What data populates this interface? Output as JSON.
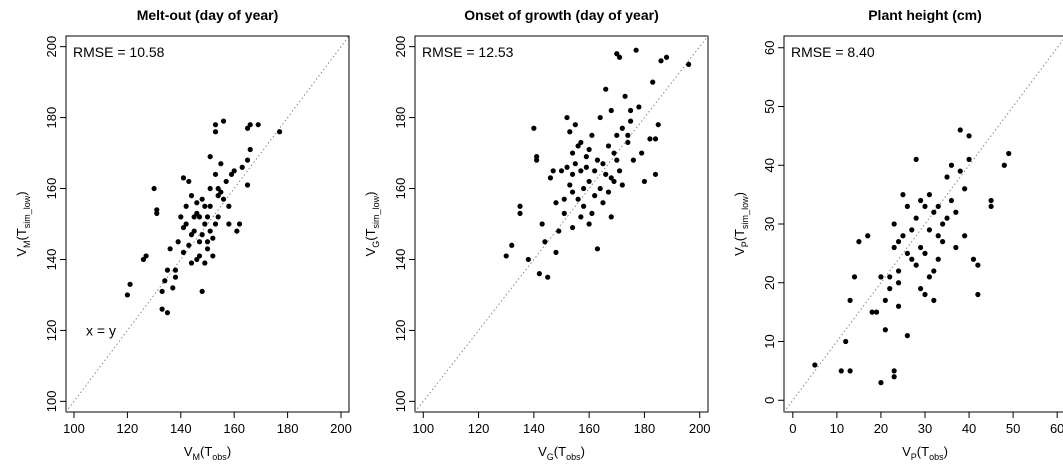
{
  "chart_data": [
    {
      "type": "scatter",
      "title": "Melt-out (day of year)",
      "xlabel": {
        "main": "V",
        "sub_main": "M",
        "paren_main": "T",
        "paren_sub": "obs"
      },
      "ylabel": {
        "main": "V",
        "sub_main": "M",
        "paren_main": "T",
        "paren_sub": "sim_low"
      },
      "xlim": [
        97,
        203
      ],
      "ylim": [
        97,
        203
      ],
      "xticks": [
        "100",
        "120",
        "140",
        "160",
        "180",
        "200"
      ],
      "yticks": [
        "100",
        "120",
        "140",
        "160",
        "180",
        "200"
      ],
      "annotation": "RMSE = 10.58",
      "line_label": "x = y",
      "identity_line": true,
      "points": [
        [
          120,
          130
        ],
        [
          121,
          133
        ],
        [
          126,
          140
        ],
        [
          127,
          141
        ],
        [
          130,
          160
        ],
        [
          131,
          153
        ],
        [
          131,
          154
        ],
        [
          133,
          131
        ],
        [
          133,
          126
        ],
        [
          134,
          134
        ],
        [
          135,
          137
        ],
        [
          135,
          125
        ],
        [
          136,
          143
        ],
        [
          137,
          132
        ],
        [
          138,
          137
        ],
        [
          138,
          135
        ],
        [
          139,
          145
        ],
        [
          140,
          152
        ],
        [
          141,
          163
        ],
        [
          141,
          149
        ],
        [
          141,
          142
        ],
        [
          142,
          155
        ],
        [
          142,
          150
        ],
        [
          143,
          144
        ],
        [
          143,
          162
        ],
        [
          144,
          147
        ],
        [
          144,
          139
        ],
        [
          144,
          158
        ],
        [
          145,
          152
        ],
        [
          145,
          148
        ],
        [
          146,
          140
        ],
        [
          146,
          153
        ],
        [
          146,
          156
        ],
        [
          147,
          145
        ],
        [
          147,
          141
        ],
        [
          147,
          152
        ],
        [
          148,
          157
        ],
        [
          148,
          147
        ],
        [
          148,
          131
        ],
        [
          149,
          150
        ],
        [
          149,
          139
        ],
        [
          149,
          155
        ],
        [
          150,
          143
        ],
        [
          150,
          152
        ],
        [
          150,
          145
        ],
        [
          151,
          148
        ],
        [
          151,
          155
        ],
        [
          151,
          160
        ],
        [
          151,
          169
        ],
        [
          152,
          141
        ],
        [
          152,
          146
        ],
        [
          153,
          150
        ],
        [
          153,
          164
        ],
        [
          153,
          178
        ],
        [
          153,
          176
        ],
        [
          154,
          158
        ],
        [
          154,
          160
        ],
        [
          154,
          152
        ],
        [
          155,
          159
        ],
        [
          155,
          167
        ],
        [
          156,
          157
        ],
        [
          156,
          179
        ],
        [
          157,
          162
        ],
        [
          158,
          155
        ],
        [
          158,
          150
        ],
        [
          159,
          164
        ],
        [
          160,
          165
        ],
        [
          161,
          148
        ],
        [
          162,
          150
        ],
        [
          163,
          166
        ],
        [
          165,
          177
        ],
        [
          165,
          168
        ],
        [
          165,
          161
        ],
        [
          166,
          171
        ],
        [
          166,
          178
        ],
        [
          169,
          178
        ],
        [
          177,
          176
        ]
      ]
    },
    {
      "type": "scatter",
      "title": "Onset of growth (day of year)",
      "xlabel": {
        "main": "V",
        "sub_main": "G",
        "paren_main": "T",
        "paren_sub": "obs"
      },
      "ylabel": {
        "main": "V",
        "sub_main": "G",
        "paren_main": "T",
        "paren_sub": "sim_low"
      },
      "xlim": [
        97,
        203
      ],
      "ylim": [
        97,
        203
      ],
      "xticks": [
        "100",
        "120",
        "140",
        "160",
        "180",
        "200"
      ],
      "yticks": [
        "100",
        "120",
        "140",
        "160",
        "180",
        "200"
      ],
      "annotation": "RMSE = 12.53",
      "identity_line": true,
      "points": [
        [
          130,
          141
        ],
        [
          132,
          144
        ],
        [
          135,
          155
        ],
        [
          135,
          153
        ],
        [
          138,
          140
        ],
        [
          140,
          177
        ],
        [
          141,
          169
        ],
        [
          141,
          168
        ],
        [
          142,
          136
        ],
        [
          143,
          150
        ],
        [
          144,
          145
        ],
        [
          145,
          135
        ],
        [
          146,
          163
        ],
        [
          147,
          165
        ],
        [
          148,
          156
        ],
        [
          148,
          142
        ],
        [
          149,
          148
        ],
        [
          150,
          165
        ],
        [
          151,
          157
        ],
        [
          151,
          153
        ],
        [
          152,
          166
        ],
        [
          152,
          180
        ],
        [
          153,
          176
        ],
        [
          153,
          161
        ],
        [
          154,
          170
        ],
        [
          154,
          164
        ],
        [
          154,
          159
        ],
        [
          154,
          149
        ],
        [
          155,
          178
        ],
        [
          155,
          167
        ],
        [
          156,
          172
        ],
        [
          156,
          157
        ],
        [
          157,
          173
        ],
        [
          157,
          165
        ],
        [
          157,
          152
        ],
        [
          158,
          160
        ],
        [
          158,
          155
        ],
        [
          159,
          169
        ],
        [
          159,
          166
        ],
        [
          160,
          171
        ],
        [
          160,
          162
        ],
        [
          160,
          150
        ],
        [
          161,
          175
        ],
        [
          161,
          153
        ],
        [
          162,
          165
        ],
        [
          162,
          158
        ],
        [
          163,
          168
        ],
        [
          163,
          143
        ],
        [
          164,
          180
        ],
        [
          164,
          160
        ],
        [
          165,
          156
        ],
        [
          165,
          167
        ],
        [
          166,
          188
        ],
        [
          166,
          164
        ],
        [
          167,
          159
        ],
        [
          167,
          172
        ],
        [
          168,
          182
        ],
        [
          168,
          163
        ],
        [
          168,
          152
        ],
        [
          169,
          170
        ],
        [
          169,
          162
        ],
        [
          170,
          198
        ],
        [
          170,
          175
        ],
        [
          170,
          168
        ],
        [
          171,
          197
        ],
        [
          171,
          165
        ],
        [
          172,
          177
        ],
        [
          172,
          161
        ],
        [
          173,
          186
        ],
        [
          174,
          175
        ],
        [
          174,
          173
        ],
        [
          175,
          182
        ],
        [
          175,
          179
        ],
        [
          176,
          168
        ],
        [
          177,
          199
        ],
        [
          178,
          183
        ],
        [
          179,
          170
        ],
        [
          180,
          162
        ],
        [
          182,
          174
        ],
        [
          183,
          190
        ],
        [
          184,
          164
        ],
        [
          184,
          174
        ],
        [
          185,
          178
        ],
        [
          186,
          196
        ],
        [
          188,
          197
        ],
        [
          196,
          195
        ]
      ]
    },
    {
      "type": "scatter",
      "title": "Plant height (cm)",
      "xlabel": {
        "main": "V",
        "sub_main": "P",
        "paren_main": "T",
        "paren_sub": "obs"
      },
      "ylabel": {
        "main": "V",
        "sub_main": "P",
        "paren_main": "T",
        "paren_sub": "sim_low"
      },
      "xlim": [
        -2,
        62
      ],
      "ylim": [
        -2,
        62
      ],
      "xticks": [
        "0",
        "10",
        "20",
        "30",
        "40",
        "50",
        "60"
      ],
      "yticks": [
        "0",
        "10",
        "20",
        "30",
        "40",
        "50",
        "60"
      ],
      "annotation": "RMSE = 8.40",
      "identity_line": true,
      "points": [
        [
          5,
          6
        ],
        [
          11,
          5
        ],
        [
          12,
          10
        ],
        [
          13,
          5
        ],
        [
          13,
          17
        ],
        [
          14,
          21
        ],
        [
          15,
          27
        ],
        [
          17,
          28
        ],
        [
          18,
          15
        ],
        [
          19,
          15
        ],
        [
          20,
          3
        ],
        [
          20,
          21
        ],
        [
          21,
          17
        ],
        [
          21,
          12
        ],
        [
          22,
          19
        ],
        [
          22,
          21
        ],
        [
          23,
          4
        ],
        [
          23,
          5
        ],
        [
          23,
          26
        ],
        [
          23,
          30
        ],
        [
          24,
          20
        ],
        [
          24,
          27
        ],
        [
          24,
          22
        ],
        [
          24,
          16
        ],
        [
          25,
          35
        ],
        [
          25,
          28
        ],
        [
          26,
          11
        ],
        [
          26,
          33
        ],
        [
          26,
          25
        ],
        [
          27,
          29
        ],
        [
          27,
          24
        ],
        [
          28,
          41
        ],
        [
          28,
          23
        ],
        [
          28,
          31
        ],
        [
          29,
          26
        ],
        [
          29,
          19
        ],
        [
          29,
          34
        ],
        [
          30,
          18
        ],
        [
          30,
          25
        ],
        [
          30,
          33
        ],
        [
          31,
          29
        ],
        [
          31,
          21
        ],
        [
          31,
          35
        ],
        [
          32,
          32
        ],
        [
          32,
          22
        ],
        [
          32,
          17
        ],
        [
          33,
          33
        ],
        [
          33,
          28
        ],
        [
          33,
          24
        ],
        [
          34,
          27
        ],
        [
          34,
          30
        ],
        [
          35,
          38
        ],
        [
          35,
          31
        ],
        [
          36,
          40
        ],
        [
          36,
          34
        ],
        [
          37,
          32
        ],
        [
          37,
          26
        ],
        [
          38,
          46
        ],
        [
          38,
          39
        ],
        [
          39,
          36
        ],
        [
          39,
          28
        ],
        [
          40,
          45
        ],
        [
          40,
          41
        ],
        [
          41,
          24
        ],
        [
          42,
          23
        ],
        [
          42,
          18
        ],
        [
          45,
          33
        ],
        [
          45,
          34
        ],
        [
          48,
          40
        ],
        [
          49,
          42
        ]
      ]
    }
  ]
}
